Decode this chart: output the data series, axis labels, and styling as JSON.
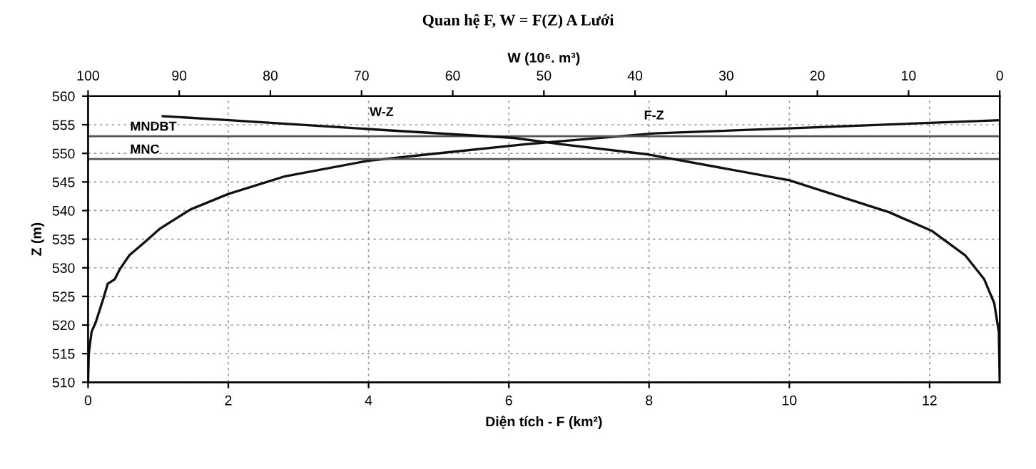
{
  "chart_data": {
    "type": "line",
    "title": "Quan hệ F, W = F(Z) A Lưới",
    "xlabel": "Diện tích - F (km²)",
    "x2label": "W (10⁶. m³)",
    "ylabel": "Z (m)",
    "xlim": [
      0,
      13
    ],
    "xticks": [
      0,
      2,
      4,
      6,
      8,
      10,
      12
    ],
    "x2lim": [
      100,
      0
    ],
    "x2ticks": [
      100,
      90,
      80,
      70,
      60,
      50,
      40,
      30,
      20,
      10,
      0
    ],
    "ylim": [
      510,
      560
    ],
    "yticks": [
      510,
      515,
      520,
      525,
      530,
      535,
      540,
      545,
      550,
      555,
      560
    ],
    "grid": true,
    "legend": false,
    "marker": "none",
    "line_style": "solid",
    "series": [
      {
        "name": "F-Z",
        "color": "#111111",
        "x": [
          0,
          0.01,
          0.05,
          0.11,
          0.22,
          0.28,
          0.38,
          0.45,
          0.59,
          0.79,
          1.02,
          1.46,
          2.0,
          2.81,
          3.99,
          4.83,
          6.24,
          8.07,
          10.05,
          13.0
        ],
        "values": [
          510,
          515,
          518.8,
          520.5,
          524.7,
          527.2,
          528,
          529.7,
          532.2,
          534.3,
          536.8,
          540.2,
          542.9,
          546,
          548.7,
          549.8,
          551.6,
          553.5,
          554.4,
          555.8
        ]
      },
      {
        "name": "W-Z",
        "axis": "x2",
        "color": "#111111",
        "x": [
          0,
          0.1,
          0.6,
          1.7,
          3.8,
          7.4,
          12.1,
          23.1,
          38.5,
          48.1,
          53.3,
          57.5,
          67.8,
          84.5,
          91.8
        ],
        "values": [
          510,
          518.8,
          523.8,
          528,
          532.2,
          536.4,
          539.7,
          545.3,
          549.8,
          551.6,
          552.7,
          553.1,
          554.1,
          555.8,
          556.5
        ]
      }
    ],
    "ref_lines": [
      {
        "axis": "y",
        "value": 553,
        "label": "MNDBT",
        "color": "#555555"
      },
      {
        "axis": "y",
        "value": 549,
        "label": "MNC",
        "color": "#555555"
      }
    ]
  }
}
